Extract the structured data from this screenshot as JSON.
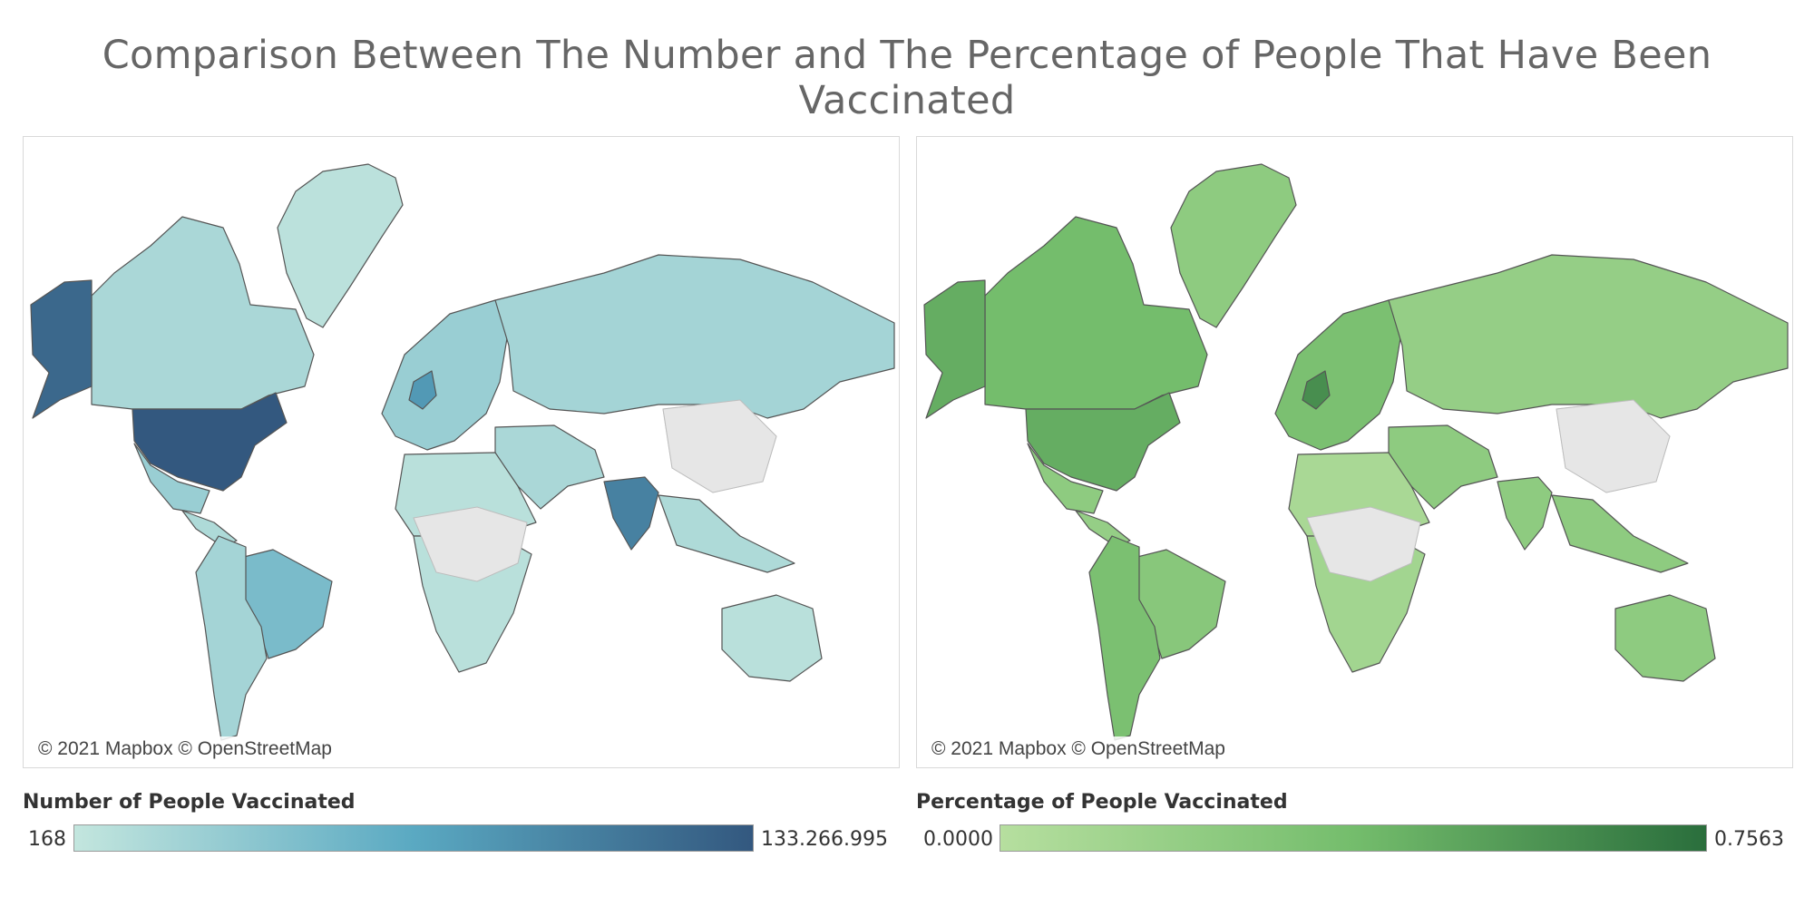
{
  "title": "Comparison Between The Number and The Percentage of People That Have Been Vaccinated",
  "maps": [
    {
      "id": "number",
      "credit": "© 2021 Mapbox © OpenStreetMap",
      "legend_title": "Number of People Vaccinated",
      "legend_min": "168",
      "legend_max": "133.266.995",
      "colors": {
        "ramp_start": "#c3e6de",
        "ramp_mid": "#5aa9c2",
        "ramp_end": "#33587f",
        "no_data": "#e6e6e6",
        "border": "#555555"
      },
      "regions": [
        {
          "name": "Greenland",
          "value": 0.04
        },
        {
          "name": "Canada",
          "value": 0.12
        },
        {
          "name": "Alaska",
          "value": 0.9
        },
        {
          "name": "United States",
          "value": 1.0
        },
        {
          "name": "Mexico",
          "value": 0.2
        },
        {
          "name": "Central America",
          "value": 0.1
        },
        {
          "name": "Brazil",
          "value": 0.35
        },
        {
          "name": "South America",
          "value": 0.15
        },
        {
          "name": "Europe",
          "value": 0.2
        },
        {
          "name": "United Kingdom",
          "value": 0.6
        },
        {
          "name": "Russia",
          "value": 0.15
        },
        {
          "name": "Middle East",
          "value": 0.12
        },
        {
          "name": "India",
          "value": 0.75
        },
        {
          "name": "Southeast Asia",
          "value": 0.1
        },
        {
          "name": "North Africa",
          "value": 0.05
        },
        {
          "name": "Southern Africa",
          "value": 0.05
        },
        {
          "name": "Australia",
          "value": 0.05
        }
      ]
    },
    {
      "id": "percentage",
      "credit": "© 2021 Mapbox © OpenStreetMap",
      "legend_title": "Percentage of People Vaccinated",
      "legend_min": "0.0000",
      "legend_max": "0.7563",
      "colors": {
        "ramp_start": "#b6df9f",
        "ramp_mid": "#74bd6c",
        "ramp_end": "#2a6e3c",
        "no_data": "#e6e6e6",
        "border": "#555555"
      },
      "regions": [
        {
          "name": "Greenland",
          "value": 0.3
        },
        {
          "name": "Canada",
          "value": 0.5
        },
        {
          "name": "Alaska",
          "value": 0.6
        },
        {
          "name": "United States",
          "value": 0.6
        },
        {
          "name": "Mexico",
          "value": 0.3
        },
        {
          "name": "Central America",
          "value": 0.25
        },
        {
          "name": "Brazil",
          "value": 0.35
        },
        {
          "name": "South America",
          "value": 0.45
        },
        {
          "name": "Europe",
          "value": 0.45
        },
        {
          "name": "United Kingdom",
          "value": 0.8
        },
        {
          "name": "Russia",
          "value": 0.25
        },
        {
          "name": "Middle East",
          "value": 0.3
        },
        {
          "name": "India",
          "value": 0.3
        },
        {
          "name": "Southeast Asia",
          "value": 0.3
        },
        {
          "name": "North Africa",
          "value": 0.1
        },
        {
          "name": "Southern Africa",
          "value": 0.15
        },
        {
          "name": "Australia",
          "value": 0.3
        }
      ]
    }
  ]
}
